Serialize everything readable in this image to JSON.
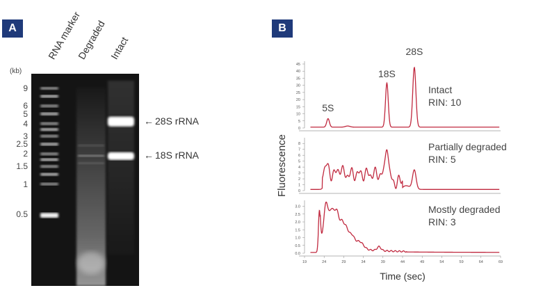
{
  "panel_a": {
    "badge": "A",
    "lanes": [
      "RNA marker",
      "Degraded",
      "Intact"
    ],
    "kb_unit": "(kb)",
    "ladder": [
      {
        "label": "9",
        "kb": 9
      },
      {
        "label": "6",
        "kb": 6
      },
      {
        "label": "5",
        "kb": 5
      },
      {
        "label": "4",
        "kb": 4
      },
      {
        "label": "3",
        "kb": 3
      },
      {
        "label": "2.5",
        "kb": 2.5
      },
      {
        "label": "2",
        "kb": 2
      },
      {
        "label": "1.5",
        "kb": 1.5
      },
      {
        "label": "1",
        "kb": 1
      },
      {
        "label": "0.5",
        "kb": 0.5
      }
    ],
    "bands": [
      {
        "label": "28S rRNA",
        "kb": 4.2
      },
      {
        "label": "18S rRNA",
        "kb": 1.9
      }
    ]
  },
  "panel_b": {
    "badge": "B",
    "ylabel": "Fluorescence",
    "xlabel": "Time (sec)",
    "x_ticks": [
      19,
      24,
      29,
      34,
      39,
      44,
      49,
      54,
      59,
      64,
      69
    ],
    "peak_labels": [
      {
        "label": "5S",
        "t": 25
      },
      {
        "label": "18S",
        "t": 40
      },
      {
        "label": "28S",
        "t": 47
      }
    ],
    "panels": [
      {
        "title": "Intact",
        "rin": "RIN: 10",
        "y_ticks": [
          0,
          5,
          10,
          15,
          20,
          25,
          30,
          35,
          40,
          45
        ],
        "ymax": 45
      },
      {
        "title": "Partially degraded",
        "rin": "RIN: 5",
        "y_ticks": [
          0,
          1,
          2,
          3,
          4,
          5,
          6,
          7,
          8
        ],
        "ymax": 8.5
      },
      {
        "title": "Mostly degraded",
        "rin": "RIN: 3",
        "y_ticks": [
          0.0,
          0.5,
          1.0,
          1.5,
          2.0,
          2.5,
          3.0
        ],
        "ymax": 3.2
      }
    ],
    "trace_color": "#c0283e"
  }
}
